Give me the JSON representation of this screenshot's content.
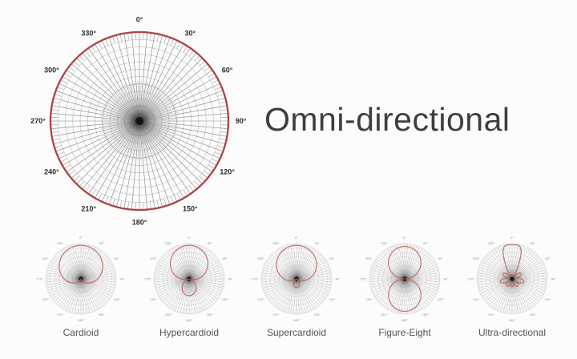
{
  "title": {
    "text": "Omni-directional"
  },
  "colors": {
    "background": "#fcfcfc",
    "pattern_red_large": "#a83c3c",
    "pattern_red_small": "#bd5f58",
    "grid_gray": "#8f8f8f",
    "axis_label_large": "#2a2a2a",
    "axis_label_small": "#909090",
    "caption_text": "#555555",
    "title_text": "#3e3e3e"
  },
  "polar_axis": {
    "angle_labels": [
      "0°",
      "30°",
      "60°",
      "90°",
      "120°",
      "150°",
      "180°",
      "210°",
      "240°",
      "270°",
      "300°",
      "330°"
    ],
    "angle_label_step_deg": 30,
    "spoke_step_deg": 5
  },
  "chart_data": [
    {
      "type": "polar",
      "size": "large",
      "pattern": "omni",
      "title": "Omni-directional",
      "equation": "r = 1"
    },
    {
      "type": "polar",
      "size": "small",
      "pattern": "cardioid",
      "title": "Cardioid",
      "equation": "r = 0.5 + 0.5·cos θ"
    },
    {
      "type": "polar",
      "size": "small",
      "pattern": "hypercardioid",
      "title": "Hypercardioid",
      "equation": "r = |0.25 + 0.75·cos θ|"
    },
    {
      "type": "polar",
      "size": "small",
      "pattern": "supercardioid",
      "title": "Supercardioid",
      "equation": "r = |0.37 + 0.63·cos θ|"
    },
    {
      "type": "polar",
      "size": "small",
      "pattern": "figure-eight",
      "title": "Figure-Eight",
      "equation": "r = |cos θ|"
    },
    {
      "type": "polar",
      "size": "small",
      "pattern": "ultra-directional",
      "title": "Ultra-directional",
      "equation": "narrow main lobe with small side and rear lobes"
    }
  ]
}
